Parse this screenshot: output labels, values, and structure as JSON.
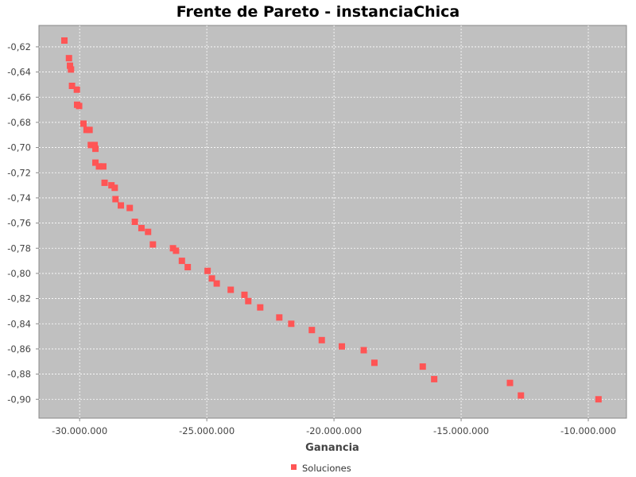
{
  "chart_data": {
    "type": "scatter",
    "title": "Frente de Pareto - instanciaChica",
    "xlabel": "Ganancia",
    "ylabel": "",
    "xlim": [
      -31600000,
      -8500000
    ],
    "ylim": [
      -0.915,
      -0.603
    ],
    "grid": true,
    "legend_position": "bottom",
    "x_ticks": [
      -30000000,
      -25000000,
      -20000000,
      -15000000,
      -10000000
    ],
    "x_tick_labels": [
      "-30.000.000",
      "-25.000.000",
      "-20.000.000",
      "-15.000.000",
      "-10.000.000"
    ],
    "y_ticks": [
      -0.62,
      -0.64,
      -0.66,
      -0.68,
      -0.7,
      -0.72,
      -0.74,
      -0.76,
      -0.78,
      -0.8,
      -0.82,
      -0.84,
      -0.86,
      -0.88,
      -0.9
    ],
    "y_tick_labels": [
      "-0,62",
      "-0,64",
      "-0,66",
      "-0,68",
      "-0,70",
      "-0,72",
      "-0,74",
      "-0,76",
      "-0,78",
      "-0,80",
      "-0,82",
      "-0,84",
      "-0,86",
      "-0,88",
      "-0,90"
    ],
    "plot_background": "#c0c0c0",
    "series": [
      {
        "name": "Soluciones",
        "color": "#ff5555",
        "marker": "square",
        "points": [
          [
            -30600000,
            -0.615
          ],
          [
            -30420000,
            -0.629
          ],
          [
            -30380000,
            -0.635
          ],
          [
            -30340000,
            -0.638
          ],
          [
            -30300000,
            -0.651
          ],
          [
            -30110000,
            -0.654
          ],
          [
            -30100000,
            -0.666
          ],
          [
            -30020000,
            -0.667
          ],
          [
            -29850000,
            -0.681
          ],
          [
            -29730000,
            -0.686
          ],
          [
            -29610000,
            -0.686
          ],
          [
            -29560000,
            -0.698
          ],
          [
            -29410000,
            -0.698
          ],
          [
            -29380000,
            -0.701
          ],
          [
            -29380000,
            -0.712
          ],
          [
            -29240000,
            -0.715
          ],
          [
            -29070000,
            -0.715
          ],
          [
            -29020000,
            -0.728
          ],
          [
            -28750000,
            -0.73
          ],
          [
            -28620000,
            -0.732
          ],
          [
            -28590000,
            -0.741
          ],
          [
            -28380000,
            -0.746
          ],
          [
            -28030000,
            -0.748
          ],
          [
            -27830000,
            -0.759
          ],
          [
            -27570000,
            -0.764
          ],
          [
            -27310000,
            -0.767
          ],
          [
            -27120000,
            -0.777
          ],
          [
            -26330000,
            -0.78
          ],
          [
            -26210000,
            -0.782
          ],
          [
            -25980000,
            -0.79
          ],
          [
            -25750000,
            -0.795
          ],
          [
            -24970000,
            -0.798
          ],
          [
            -24800000,
            -0.804
          ],
          [
            -24610000,
            -0.808
          ],
          [
            -24060000,
            -0.813
          ],
          [
            -23520000,
            -0.817
          ],
          [
            -23370000,
            -0.822
          ],
          [
            -22900000,
            -0.827
          ],
          [
            -22150000,
            -0.835
          ],
          [
            -21680000,
            -0.84
          ],
          [
            -20870000,
            -0.845
          ],
          [
            -20480000,
            -0.853
          ],
          [
            -19690000,
            -0.858
          ],
          [
            -18830000,
            -0.861
          ],
          [
            -18410000,
            -0.871
          ],
          [
            -16510000,
            -0.874
          ],
          [
            -16060000,
            -0.884
          ],
          [
            -13080000,
            -0.887
          ],
          [
            -12650000,
            -0.897
          ],
          [
            -9600000,
            -0.9
          ]
        ]
      }
    ]
  }
}
